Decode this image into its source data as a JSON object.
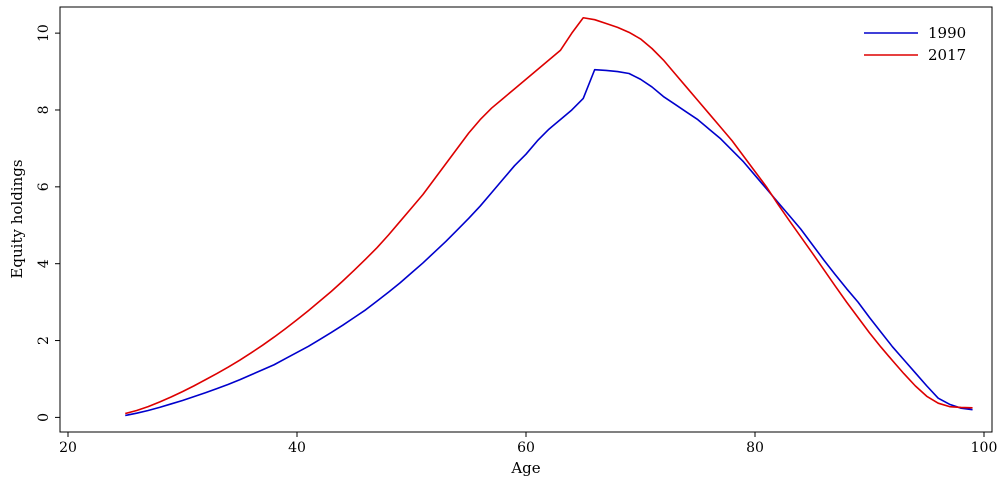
{
  "chart_data": {
    "type": "line",
    "title": "",
    "xlabel": "Age",
    "ylabel": "Equity holdings",
    "xlim": [
      20,
      100
    ],
    "ylim": [
      0,
      10.5
    ],
    "xticks": [
      20,
      40,
      60,
      80,
      100
    ],
    "yticks": [
      0,
      2,
      4,
      6,
      8,
      10
    ],
    "grid": false,
    "legend_position": "top-right",
    "series": [
      {
        "name": "1990",
        "color": "#0000cc",
        "x": [
          25,
          26,
          27,
          28,
          29,
          30,
          31,
          32,
          33,
          34,
          35,
          36,
          37,
          38,
          39,
          40,
          41,
          42,
          43,
          44,
          45,
          46,
          47,
          48,
          49,
          50,
          51,
          52,
          53,
          54,
          55,
          56,
          57,
          58,
          59,
          60,
          61,
          62,
          63,
          64,
          65,
          66,
          67,
          68,
          69,
          70,
          71,
          72,
          73,
          74,
          75,
          76,
          77,
          78,
          79,
          80,
          81,
          82,
          83,
          84,
          85,
          86,
          87,
          88,
          89,
          90,
          91,
          92,
          93,
          94,
          95,
          96,
          97,
          98,
          99
        ],
        "y": [
          0.05,
          0.11,
          0.18,
          0.26,
          0.35,
          0.44,
          0.54,
          0.64,
          0.75,
          0.86,
          0.98,
          1.11,
          1.24,
          1.37,
          1.53,
          1.69,
          1.85,
          2.03,
          2.21,
          2.4,
          2.6,
          2.8,
          3.03,
          3.26,
          3.5,
          3.76,
          4.02,
          4.3,
          4.58,
          4.88,
          5.18,
          5.5,
          5.85,
          6.2,
          6.55,
          6.85,
          7.2,
          7.5,
          7.75,
          8.0,
          8.3,
          9.05,
          9.03,
          9.0,
          8.95,
          8.8,
          8.6,
          8.35,
          8.15,
          7.95,
          7.75,
          7.5,
          7.25,
          6.95,
          6.65,
          6.3,
          5.95,
          5.6,
          5.25,
          4.9,
          4.5,
          4.1,
          3.72,
          3.35,
          3.0,
          2.6,
          2.22,
          1.84,
          1.5,
          1.16,
          0.82,
          0.5,
          0.34,
          0.24,
          0.2
        ]
      },
      {
        "name": "2017",
        "color": "#dd0000",
        "x": [
          25,
          26,
          27,
          28,
          29,
          30,
          31,
          32,
          33,
          34,
          35,
          36,
          37,
          38,
          39,
          40,
          41,
          42,
          43,
          44,
          45,
          46,
          47,
          48,
          49,
          50,
          51,
          52,
          53,
          54,
          55,
          56,
          57,
          58,
          59,
          60,
          61,
          62,
          63,
          64,
          65,
          66,
          67,
          68,
          69,
          70,
          71,
          72,
          73,
          74,
          75,
          76,
          77,
          78,
          79,
          80,
          81,
          82,
          83,
          84,
          85,
          86,
          87,
          88,
          89,
          90,
          91,
          92,
          93,
          94,
          95,
          96,
          97,
          98,
          99
        ],
        "y": [
          0.1,
          0.18,
          0.28,
          0.4,
          0.53,
          0.67,
          0.82,
          0.98,
          1.14,
          1.31,
          1.49,
          1.68,
          1.88,
          2.09,
          2.31,
          2.54,
          2.78,
          3.03,
          3.28,
          3.55,
          3.83,
          4.12,
          4.42,
          4.75,
          5.1,
          5.45,
          5.8,
          6.2,
          6.6,
          7.0,
          7.4,
          7.75,
          8.05,
          8.3,
          8.55,
          8.8,
          9.05,
          9.3,
          9.55,
          10.0,
          10.4,
          10.35,
          10.25,
          10.15,
          10.02,
          9.85,
          9.6,
          9.3,
          8.95,
          8.6,
          8.25,
          7.9,
          7.55,
          7.2,
          6.8,
          6.4,
          6.0,
          5.55,
          5.12,
          4.7,
          4.28,
          3.85,
          3.42,
          3.0,
          2.6,
          2.2,
          1.83,
          1.48,
          1.14,
          0.82,
          0.55,
          0.37,
          0.28,
          0.26,
          0.25
        ]
      }
    ]
  }
}
